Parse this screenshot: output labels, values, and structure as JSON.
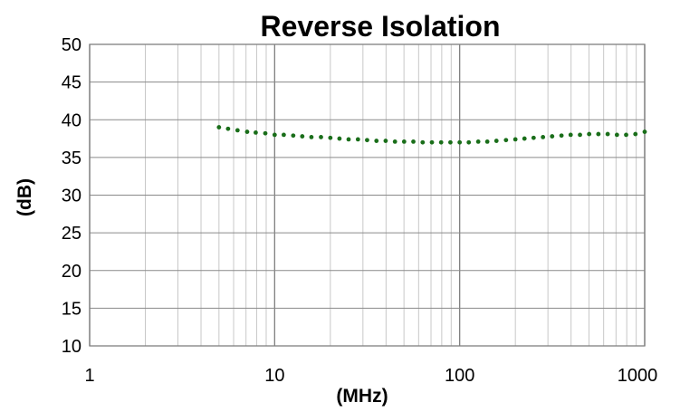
{
  "chart_data": {
    "type": "scatter",
    "title": "Reverse Isolation",
    "xlabel": "(MHz)",
    "ylabel": "(dB)",
    "x_scale": "log",
    "xlim": [
      1,
      1000
    ],
    "ylim": [
      10,
      50
    ],
    "x_ticks": [
      "1",
      "10",
      "100",
      "1000"
    ],
    "y_ticks": [
      "10",
      "15",
      "20",
      "25",
      "30",
      "35",
      "40",
      "45",
      "50"
    ],
    "grid": true,
    "legend": "none",
    "series_color": "#1a6e1a",
    "series": [
      {
        "x": [
          5,
          5.6,
          6.3,
          7.1,
          7.9,
          8.9,
          10,
          11.2,
          12.6,
          14.1,
          15.8,
          17.8,
          20,
          22.4,
          25.1,
          28.2,
          31.6,
          35.5,
          39.8,
          44.7,
          50.1,
          56.2,
          63.1,
          70.8,
          79.4,
          89.1,
          100,
          112,
          126,
          141,
          158,
          178,
          200,
          224,
          251,
          282,
          316,
          355,
          398,
          447,
          501,
          562,
          631,
          708,
          794,
          891,
          1000
        ],
        "y": [
          39.0,
          38.8,
          38.6,
          38.4,
          38.3,
          38.2,
          38.0,
          38.0,
          37.9,
          37.8,
          37.7,
          37.7,
          37.6,
          37.5,
          37.4,
          37.4,
          37.3,
          37.2,
          37.2,
          37.1,
          37.1,
          37.1,
          37.0,
          37.0,
          37.0,
          37.0,
          37.0,
          37.0,
          37.1,
          37.1,
          37.2,
          37.3,
          37.4,
          37.5,
          37.6,
          37.7,
          37.8,
          37.9,
          38.0,
          38.0,
          38.1,
          38.1,
          38.1,
          38.0,
          38.0,
          38.1,
          38.4
        ]
      }
    ]
  }
}
